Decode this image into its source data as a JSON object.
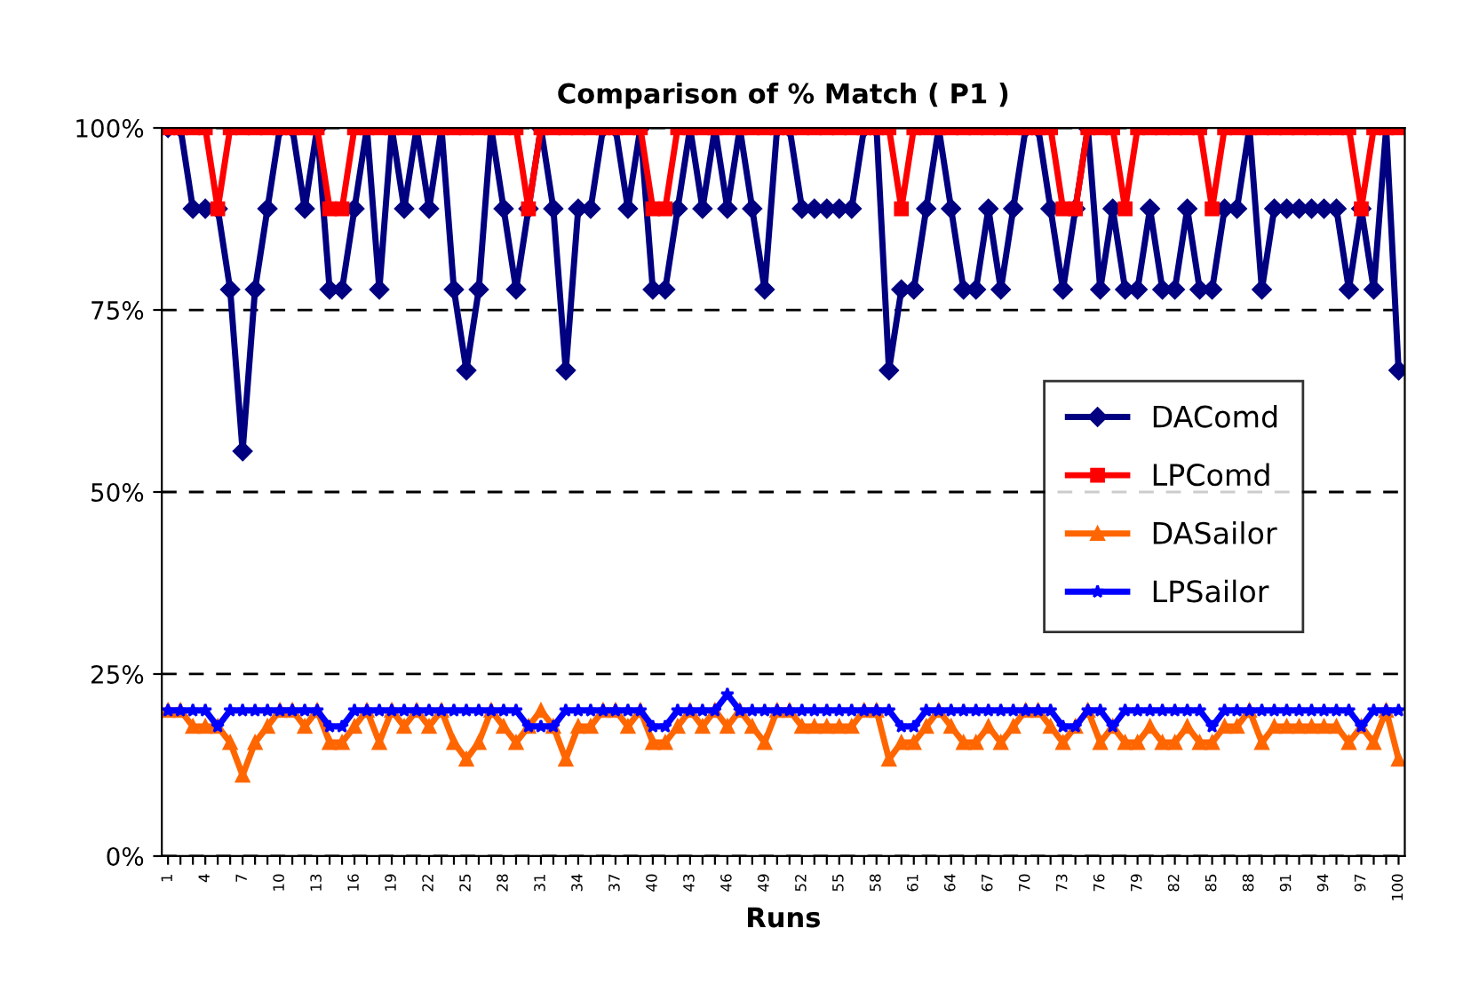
{
  "chart_data": {
    "type": "line",
    "title": "Comparison of % Match ( P1 )",
    "xlabel": "Runs",
    "categories": [
      "1",
      null,
      null,
      "4",
      null,
      null,
      "7",
      null,
      null,
      "10",
      null,
      null,
      "13",
      null,
      null,
      "16",
      null,
      null,
      "19",
      null,
      null,
      "22",
      null,
      null,
      "25",
      null,
      null,
      "28",
      null,
      null,
      "31",
      null,
      null,
      "34",
      null,
      null,
      "37",
      null,
      null,
      "40",
      null,
      null,
      "43",
      null,
      null,
      "46",
      null,
      null,
      "49",
      null,
      null,
      "52",
      null,
      null,
      "55",
      null,
      null,
      "58",
      null,
      null,
      "61",
      null,
      null,
      "64",
      null,
      null,
      "67",
      null,
      null,
      "70",
      null,
      null,
      "73",
      null,
      null,
      "76",
      null,
      null,
      "79",
      null,
      null,
      "82",
      null,
      null,
      "85",
      null,
      null,
      "88",
      null,
      null,
      "91",
      null,
      null,
      "94",
      null,
      null,
      "97",
      null,
      null,
      "100"
    ],
    "series": [
      {
        "name": "DAComd",
        "color": "#000080",
        "marker": "diamond",
        "values": [
          100,
          100,
          88.9,
          88.9,
          88.9,
          77.8,
          55.6,
          77.8,
          88.9,
          100,
          100,
          88.9,
          100,
          77.8,
          77.8,
          88.9,
          100,
          77.8,
          100,
          88.9,
          100,
          88.9,
          100,
          77.8,
          66.7,
          77.8,
          100,
          88.9,
          77.8,
          88.9,
          100,
          88.9,
          66.7,
          88.9,
          88.9,
          100,
          100,
          88.9,
          100,
          77.8,
          77.8,
          88.9,
          100,
          88.9,
          100,
          88.9,
          100,
          88.9,
          77.8,
          100,
          100,
          88.9,
          88.9,
          88.9,
          88.9,
          88.9,
          100,
          100,
          66.7,
          77.8,
          77.8,
          88.9,
          100,
          88.9,
          77.8,
          77.8,
          88.9,
          77.8,
          88.9,
          100,
          100,
          88.9,
          77.8,
          88.9,
          100,
          77.8,
          88.9,
          77.8,
          77.8,
          88.9,
          77.8,
          77.8,
          88.9,
          77.8,
          77.8,
          88.9,
          88.9,
          100,
          77.8,
          88.9,
          88.9,
          88.9,
          88.9,
          88.9,
          88.9,
          77.8,
          88.9,
          77.8,
          100,
          66.7
        ]
      },
      {
        "name": "LPComd",
        "color": "#ff0000",
        "marker": "square",
        "values": [
          100,
          100,
          100,
          100,
          88.9,
          100,
          100,
          100,
          100,
          100,
          100,
          100,
          100,
          88.9,
          88.9,
          100,
          100,
          100,
          100,
          100,
          100,
          100,
          100,
          100,
          100,
          100,
          100,
          100,
          100,
          88.9,
          100,
          100,
          100,
          100,
          100,
          100,
          100,
          100,
          100,
          88.9,
          88.9,
          100,
          100,
          100,
          100,
          100,
          100,
          100,
          100,
          100,
          100,
          100,
          100,
          100,
          100,
          100,
          100,
          100,
          100,
          88.9,
          100,
          100,
          100,
          100,
          100,
          100,
          100,
          100,
          100,
          100,
          100,
          100,
          88.9,
          88.9,
          100,
          100,
          100,
          88.9,
          100,
          100,
          100,
          100,
          100,
          100,
          88.9,
          100,
          100,
          100,
          100,
          100,
          100,
          100,
          100,
          100,
          100,
          100,
          88.9,
          100,
          100,
          100
        ]
      },
      {
        "name": "DASailor",
        "color": "#ff6600",
        "marker": "triangle",
        "values": [
          20,
          20,
          17.8,
          17.8,
          17.8,
          15.6,
          11.1,
          15.6,
          17.8,
          20,
          20,
          17.8,
          20,
          15.6,
          15.6,
          17.8,
          20,
          15.6,
          20,
          17.8,
          20,
          17.8,
          20,
          15.6,
          13.3,
          15.6,
          20,
          17.8,
          15.6,
          17.8,
          20,
          17.8,
          13.3,
          17.8,
          17.8,
          20,
          20,
          17.8,
          20,
          15.6,
          15.6,
          17.8,
          20,
          17.8,
          20,
          17.8,
          20,
          17.8,
          15.6,
          20,
          20,
          17.8,
          17.8,
          17.8,
          17.8,
          17.8,
          20,
          20,
          13.3,
          15.6,
          15.6,
          17.8,
          20,
          17.8,
          15.6,
          15.6,
          17.8,
          15.6,
          17.8,
          20,
          20,
          17.8,
          15.6,
          17.8,
          20,
          15.6,
          17.8,
          15.6,
          15.6,
          17.8,
          15.6,
          15.6,
          17.8,
          15.6,
          15.6,
          17.8,
          17.8,
          20,
          15.6,
          17.8,
          17.8,
          17.8,
          17.8,
          17.8,
          17.8,
          15.6,
          17.8,
          15.6,
          20,
          13.3
        ]
      },
      {
        "name": "LPSailor",
        "color": "#0000ff",
        "marker": "star",
        "values": [
          20,
          20,
          20,
          20,
          17.8,
          20,
          20,
          20,
          20,
          20,
          20,
          20,
          20,
          17.8,
          17.8,
          20,
          20,
          20,
          20,
          20,
          20,
          20,
          20,
          20,
          20,
          20,
          20,
          20,
          20,
          17.8,
          17.8,
          17.8,
          20,
          20,
          20,
          20,
          20,
          20,
          20,
          17.8,
          17.8,
          20,
          20,
          20,
          20,
          22.2,
          20,
          20,
          20,
          20,
          20,
          20,
          20,
          20,
          20,
          20,
          20,
          20,
          20,
          17.8,
          17.8,
          20,
          20,
          20,
          20,
          20,
          20,
          20,
          20,
          20,
          20,
          20,
          17.8,
          17.8,
          20,
          20,
          17.8,
          20,
          20,
          20,
          20,
          20,
          20,
          20,
          17.8,
          20,
          20,
          20,
          20,
          20,
          20,
          20,
          20,
          20,
          20,
          20,
          17.8,
          20,
          20,
          20
        ]
      }
    ],
    "ylim": [
      0,
      100
    ],
    "yticks": [
      {
        "value": 0,
        "label": "0%"
      },
      {
        "value": 25,
        "label": "25%"
      },
      {
        "value": 50,
        "label": "50%"
      },
      {
        "value": 75,
        "label": "75%"
      },
      {
        "value": 100,
        "label": "100%"
      }
    ],
    "grid": "y",
    "legend": "right",
    "line_style": "solid"
  }
}
